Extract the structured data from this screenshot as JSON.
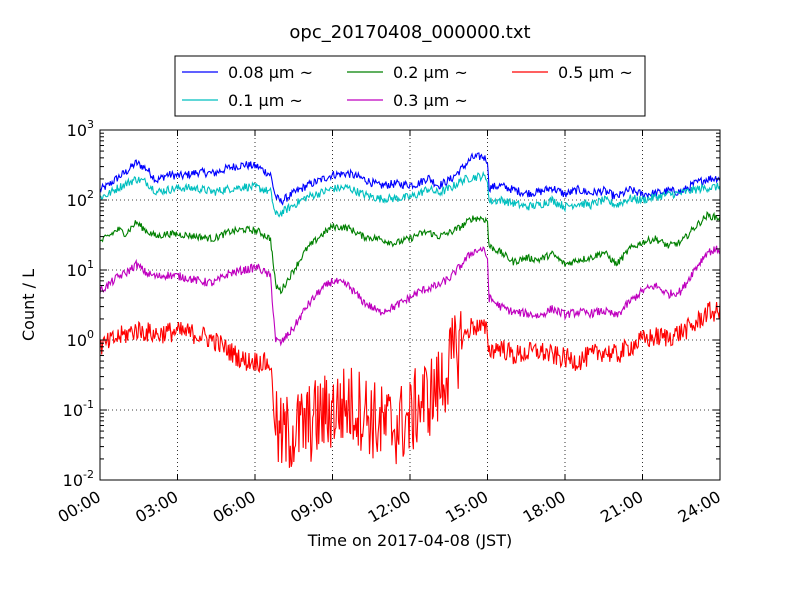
{
  "chart_data": {
    "type": "line",
    "title": "opc_20170408_000000.txt",
    "xlabel": "Time on 2017-04-08 (JST)",
    "ylabel": "Count / L",
    "xlim": [
      0,
      24
    ],
    "ylim": [
      0.01,
      1000
    ],
    "yscale": "log",
    "grid": true,
    "legend_position": "top-center",
    "x_ticks": [
      0,
      3,
      6,
      9,
      12,
      15,
      18,
      21,
      24
    ],
    "x_tick_labels": [
      "00:00",
      "03:00",
      "06:00",
      "09:00",
      "12:00",
      "15:00",
      "18:00",
      "21:00",
      "24:00"
    ],
    "y_ticks": [
      {
        "value": 0.01,
        "base": "10",
        "exp": "-2"
      },
      {
        "value": 0.1,
        "base": "10",
        "exp": "-1"
      },
      {
        "value": 1,
        "base": "10",
        "exp": "0"
      },
      {
        "value": 10,
        "base": "10",
        "exp": "1"
      },
      {
        "value": 100,
        "base": "10",
        "exp": "2"
      },
      {
        "value": 1000,
        "base": "10",
        "exp": "3"
      }
    ],
    "legend_suffix": "μm ~",
    "series": [
      {
        "name": "0.08",
        "color": "#0000ff",
        "noise": 0.06,
        "x": [
          0,
          0.3,
          0.7,
          1.0,
          1.4,
          1.8,
          2.2,
          2.6,
          3.2,
          3.8,
          4.4,
          5.0,
          5.6,
          6.1,
          6.6,
          6.8,
          7.0,
          7.5,
          8.0,
          8.5,
          9.0,
          9.6,
          10.2,
          10.8,
          11.4,
          12.0,
          12.3,
          12.7,
          13.1,
          13.6,
          14.0,
          14.4,
          14.8,
          15.0,
          15.05,
          15.5,
          16.0,
          16.5,
          17.0,
          17.5,
          18.0,
          18.5,
          19.0,
          19.5,
          20.0,
          20.5,
          21.0,
          21.5,
          22.0,
          22.5,
          23.0,
          23.5,
          24.0
        ],
        "y": [
          140,
          160,
          210,
          250,
          340,
          280,
          190,
          230,
          220,
          250,
          240,
          290,
          320,
          300,
          230,
          110,
          95,
          125,
          160,
          190,
          230,
          240,
          200,
          160,
          170,
          165,
          170,
          210,
          160,
          200,
          280,
          400,
          420,
          370,
          150,
          160,
          140,
          125,
          130,
          150,
          120,
          140,
          125,
          135,
          110,
          140,
          120,
          125,
          135,
          130,
          170,
          200,
          210
        ]
      },
      {
        "name": "0.1",
        "color": "#00bfbf",
        "noise": 0.06,
        "x": [
          0,
          0.3,
          0.7,
          1.0,
          1.4,
          1.8,
          2.2,
          2.6,
          3.2,
          3.8,
          4.4,
          5.0,
          5.6,
          6.1,
          6.6,
          6.8,
          7.0,
          7.5,
          8.0,
          8.5,
          9.0,
          9.6,
          10.2,
          10.8,
          11.4,
          12.0,
          12.3,
          12.7,
          13.1,
          13.6,
          14.0,
          14.4,
          14.8,
          15.0,
          15.05,
          15.5,
          16.0,
          16.5,
          17.0,
          17.5,
          18.0,
          18.5,
          19.0,
          19.5,
          20.0,
          20.5,
          21.0,
          21.5,
          22.0,
          22.5,
          23.0,
          23.5,
          24.0
        ],
        "y": [
          110,
          120,
          150,
          170,
          200,
          180,
          130,
          140,
          150,
          145,
          130,
          145,
          155,
          150,
          130,
          60,
          65,
          85,
          110,
          125,
          145,
          150,
          120,
          105,
          105,
          110,
          120,
          145,
          125,
          150,
          190,
          210,
          220,
          200,
          95,
          100,
          90,
          80,
          85,
          100,
          80,
          90,
          85,
          100,
          85,
          105,
          100,
          110,
          120,
          125,
          140,
          150,
          155
        ]
      },
      {
        "name": "0.2",
        "color": "#008000",
        "noise": 0.05,
        "x": [
          0,
          0.3,
          0.7,
          1.0,
          1.4,
          1.8,
          2.2,
          2.6,
          3.2,
          3.8,
          4.4,
          5.0,
          5.6,
          6.1,
          6.6,
          6.8,
          7.0,
          7.5,
          8.0,
          8.5,
          9.0,
          9.6,
          10.2,
          10.8,
          11.4,
          12.0,
          12.3,
          12.7,
          13.1,
          13.6,
          14.0,
          14.4,
          14.8,
          15.0,
          15.05,
          15.5,
          16.0,
          16.5,
          17.0,
          17.5,
          18.0,
          18.5,
          19.0,
          19.5,
          20.0,
          20.5,
          21.0,
          21.5,
          22.0,
          22.5,
          23.0,
          23.5,
          24.0
        ],
        "y": [
          25,
          30,
          38,
          33,
          48,
          36,
          30,
          33,
          32,
          30,
          28,
          35,
          38,
          36,
          28,
          6,
          5,
          10,
          20,
          30,
          42,
          40,
          30,
          28,
          24,
          28,
          32,
          35,
          30,
          35,
          42,
          55,
          55,
          50,
          22,
          18,
          13,
          15,
          14,
          17,
          12,
          14,
          15,
          18,
          12,
          20,
          25,
          28,
          22,
          25,
          40,
          60,
          55
        ]
      },
      {
        "name": "0.3",
        "color": "#bf00bf",
        "noise": 0.06,
        "x": [
          0,
          0.3,
          0.7,
          1.0,
          1.4,
          1.8,
          2.2,
          2.6,
          3.2,
          3.8,
          4.4,
          5.0,
          5.6,
          6.1,
          6.6,
          6.8,
          7.0,
          7.5,
          8.0,
          8.5,
          9.0,
          9.6,
          10.2,
          10.8,
          11.4,
          12.0,
          12.3,
          12.7,
          13.1,
          13.6,
          14.0,
          14.4,
          14.8,
          15.0,
          15.05,
          15.5,
          16.0,
          16.5,
          17.0,
          17.5,
          18.0,
          18.5,
          19.0,
          19.5,
          20.0,
          20.5,
          21.0,
          21.5,
          22.0,
          22.5,
          23.0,
          23.5,
          24.0
        ],
        "y": [
          5,
          6,
          8,
          9,
          12,
          9,
          8,
          8.5,
          8,
          7,
          6.5,
          9,
          10,
          11,
          8,
          1.0,
          0.9,
          1.5,
          3,
          5,
          7,
          6,
          3.5,
          2.5,
          3,
          4,
          4.8,
          5.5,
          6,
          8,
          12,
          18,
          20,
          15,
          4,
          3,
          2.5,
          2.4,
          2.2,
          2.8,
          2.3,
          2.5,
          2.4,
          2.6,
          2.2,
          3.5,
          5,
          6,
          4.5,
          5,
          10,
          18,
          20
        ]
      },
      {
        "name": "0.5",
        "color": "#ff0000",
        "noise": 0.15,
        "x": [
          0,
          0.3,
          0.7,
          1.0,
          1.4,
          1.8,
          2.2,
          2.6,
          3.2,
          3.8,
          4.4,
          5.0,
          5.6,
          6.1,
          6.6,
          6.8,
          7.0,
          7.5,
          8.0,
          8.5,
          9.0,
          9.6,
          10.2,
          10.8,
          11.4,
          12.0,
          12.3,
          12.7,
          13.1,
          13.6,
          14.0,
          14.4,
          14.8,
          15.0,
          15.05,
          15.5,
          16.0,
          16.5,
          17.0,
          17.5,
          18.0,
          18.5,
          19.0,
          19.5,
          20.0,
          20.5,
          21.0,
          21.5,
          22.0,
          22.5,
          23.0,
          23.5,
          24.0
        ],
        "y": [
          0.8,
          0.9,
          1.1,
          1.2,
          1.4,
          1.3,
          1.2,
          1.3,
          1.3,
          1.2,
          1.0,
          0.7,
          0.5,
          0.5,
          0.45,
          0.05,
          0.04,
          0.05,
          0.06,
          0.08,
          0.1,
          0.12,
          0.1,
          0.06,
          0.06,
          0.07,
          0.12,
          0.15,
          0.2,
          0.5,
          1.0,
          1.6,
          1.5,
          1.3,
          0.7,
          0.8,
          0.6,
          0.65,
          0.7,
          0.6,
          0.55,
          0.5,
          0.6,
          0.7,
          0.6,
          0.8,
          1.0,
          1.1,
          1.1,
          1.3,
          1.6,
          2.5,
          2.5
        ]
      }
    ]
  }
}
